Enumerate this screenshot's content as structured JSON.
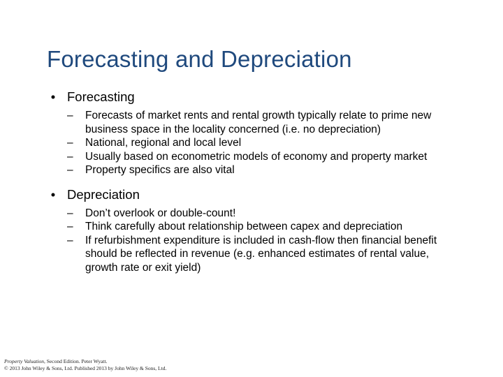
{
  "slide": {
    "title": "Forecasting and Depreciation",
    "sections": [
      {
        "heading": "Forecasting",
        "items": [
          "Forecasts of market rents and rental growth typically relate to prime new business space in the locality concerned  (i.e. no depreciation)",
          "National, regional and local level",
          "Usually based on econometric models of economy and property market",
          "Property specifics are also vital"
        ]
      },
      {
        "heading": "Depreciation",
        "items": [
          "Don’t overlook or double-count!",
          "Think carefully about relationship between capex and depreciation",
          "If refurbishment expenditure is included in cash-flow then financial benefit should be reflected in revenue (e.g. enhanced estimates of rental value, growth rate or exit yield)"
        ]
      }
    ],
    "bullet_glyph": "•",
    "dash_glyph": "–",
    "footer": {
      "book_title": "Property Valuation",
      "edition": ", Second Edition. Peter Wyatt.",
      "copyright": "© 2013 John Wiley & Sons, Ltd. Published 2013 by John Wiley & Sons, Ltd."
    },
    "colors": {
      "title": "#1f497d",
      "text": "#000000",
      "background": "#ffffff"
    }
  }
}
